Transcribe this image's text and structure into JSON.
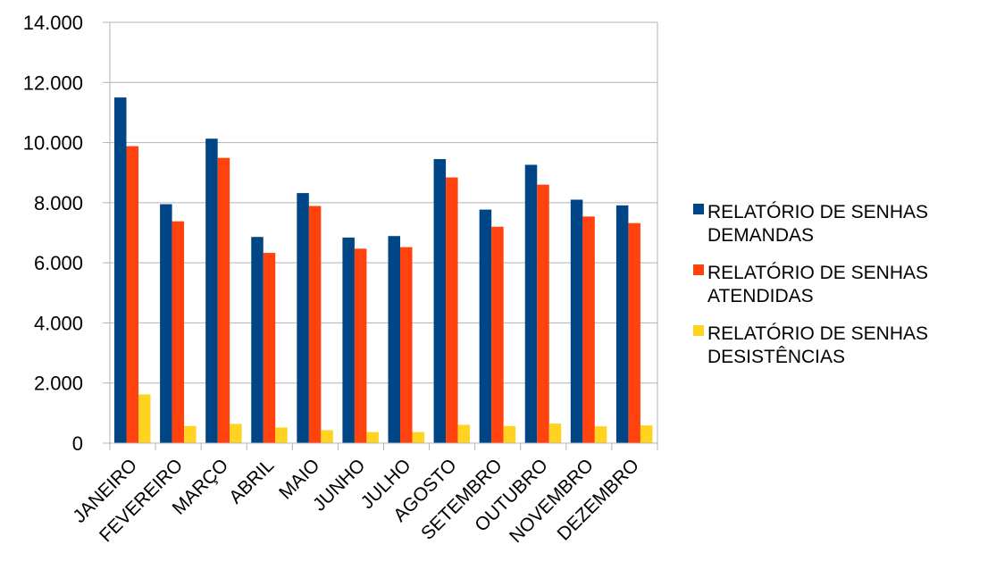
{
  "chart_data": {
    "type": "bar",
    "categories": [
      "JANEIRO",
      "FEVEREIRO",
      "MARÇO",
      "ABRIL",
      "MAIO",
      "JUNHO",
      "JULHO",
      "AGOSTO",
      "SETEMBRO",
      "OUTUBRO",
      "NOVEMBRO",
      "DEZEMBRO"
    ],
    "series": [
      {
        "name": "RELATÓRIO DE SENHAS DEMANDAS",
        "name_lines": [
          "RELATÓRIO DE SENHAS",
          "DEMANDAS"
        ],
        "color": "#004586",
        "values": [
          11500,
          7950,
          10130,
          6860,
          8320,
          6840,
          6890,
          9450,
          7770,
          9260,
          8100,
          7910
        ]
      },
      {
        "name": "RELATÓRIO DE SENHAS ATENDIDAS",
        "name_lines": [
          "RELATÓRIO DE SENHAS",
          "ATENDIDAS"
        ],
        "color": "#FF420E",
        "values": [
          9880,
          7380,
          9490,
          6330,
          7890,
          6470,
          6520,
          8840,
          7200,
          8600,
          7540,
          7320
        ]
      },
      {
        "name": "RELATÓRIO DE SENHAS DESISTÊNCIAS",
        "name_lines": [
          "RELATÓRIO DE SENHAS",
          "DESISTÊNCIAS"
        ],
        "color": "#FFD320",
        "values": [
          1620,
          570,
          640,
          520,
          430,
          370,
          370,
          610,
          570,
          650,
          560,
          590
        ]
      }
    ],
    "y_ticks": [
      "0",
      "2.000",
      "4.000",
      "6.000",
      "8.000",
      "10.000",
      "12.000",
      "14.000"
    ],
    "ylim": [
      0,
      14000
    ],
    "ystep": 2000,
    "grid": true,
    "legend_position": "right"
  }
}
